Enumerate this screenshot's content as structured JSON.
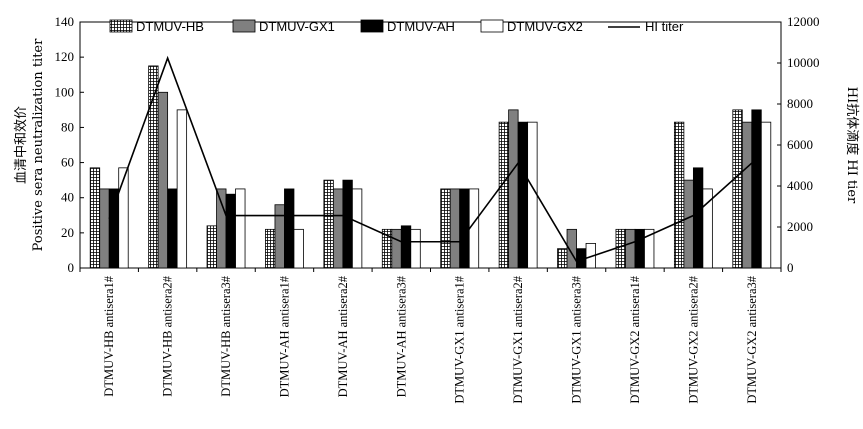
{
  "chart_data": {
    "type": "bar",
    "categories": [
      "DTMUV-HB antisera1#",
      "DTMUV-HB antisera2#",
      "DTMUV-HB antisera3#",
      "DTMUV-AH antisera1#",
      "DTMUV-AH antisera2#",
      "DTMUV-AH antisera3#",
      "DTMUV-GX1 antisera1#",
      "DTMUV-GX1 antisera2#",
      "DTMUV-GX1 antisera3#",
      "DTMUV-GX2 antisera1#",
      "DTMUV-GX2 antisera2#",
      "DTMUV-GX2 antisera3#"
    ],
    "series": [
      {
        "name": "DTMUV-HB",
        "values": [
          57,
          115,
          24,
          22,
          50,
          22,
          45,
          83,
          11,
          22,
          83,
          90
        ],
        "pattern": "grid",
        "color": "#ffffff"
      },
      {
        "name": "DTMUV-GX1",
        "values": [
          45,
          100,
          45,
          36,
          45,
          22,
          45,
          90,
          22,
          22,
          50,
          83
        ],
        "pattern": "solid",
        "color": "#808080"
      },
      {
        "name": "DTMUV-AH",
        "values": [
          45,
          45,
          42,
          45,
          50,
          24,
          45,
          83,
          11,
          22,
          57,
          90
        ],
        "pattern": "solid",
        "color": "#000000"
      },
      {
        "name": "DTMUV-GX2",
        "values": [
          57,
          90,
          45,
          22,
          45,
          22,
          45,
          83,
          14,
          22,
          45,
          83
        ],
        "pattern": "outline",
        "color": "#ffffff"
      }
    ],
    "line_series": {
      "name": "HI titer",
      "values": [
        2400,
        10240,
        2560,
        2560,
        2560,
        1280,
        1280,
        5120,
        320,
        1280,
        2560,
        5120
      ],
      "color": "#000000"
    },
    "ylabel": "血清中和效价\nPositive sera neutralization titer",
    "ylabel_lines": [
      "血清中和效价",
      "Positive sera neutralization titer"
    ],
    "y2label": "HI抗体滴度 HI tier",
    "ylim": [
      0,
      140
    ],
    "y_ticks": [
      "0",
      "20",
      "40",
      "60",
      "80",
      "100",
      "120",
      "140"
    ],
    "y2lim": [
      0,
      12000
    ],
    "y2_ticks": [
      "0",
      "2000",
      "4000",
      "6000",
      "8000",
      "10000",
      "12000"
    ],
    "legend": [
      "DTMUV-HB",
      "DTMUV-GX1",
      "DTMUV-AH",
      "DTMUV-GX2",
      "HI titer"
    ],
    "legend_position": "top",
    "grid": false
  }
}
